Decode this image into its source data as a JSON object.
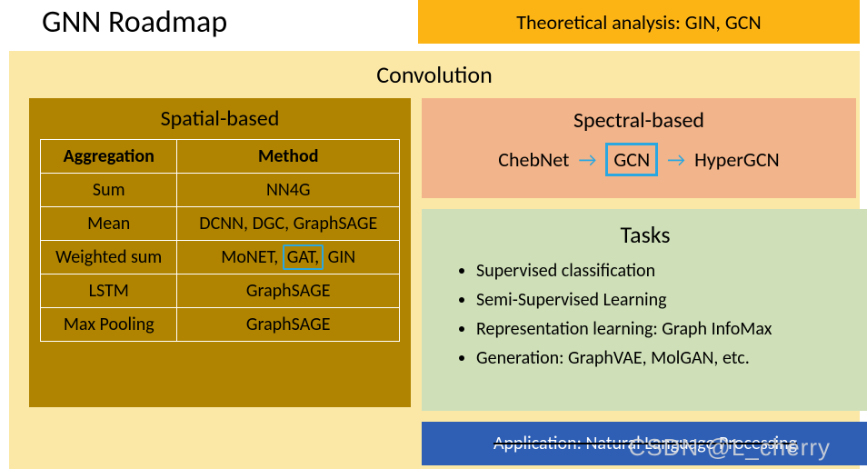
{
  "title": "GNN Roadmap",
  "colors": {
    "theory_bg": "#fcb415",
    "convolution_bg": "#fbe8a6",
    "spatial_bg": "#b08401",
    "spatial_cell_bg": "#b08401",
    "spectral_bg": "#f2b48a",
    "tasks_bg": "#cfe0b8",
    "app_bg": "#2e5fb4",
    "highlight_border": "#2aa7e0",
    "text": "#000000"
  },
  "theory": {
    "label": "Theoretical analysis: GIN, GCN"
  },
  "convolution": {
    "title": "Convolution",
    "spatial": {
      "title": "Spatial-based",
      "columns": [
        "Aggregation",
        "Method"
      ],
      "rows": [
        {
          "agg": "Sum",
          "method_pre": "NN4G",
          "highlight": "",
          "method_post": ""
        },
        {
          "agg": "Mean",
          "method_pre": "DCNN, DGC, GraphSAGE",
          "highlight": "",
          "method_post": ""
        },
        {
          "agg": "Weighted sum",
          "method_pre": "MoNET, ",
          "highlight": "GAT,",
          "method_post": " GIN"
        },
        {
          "agg": "LSTM",
          "method_pre": "GraphSAGE",
          "highlight": "",
          "method_post": ""
        },
        {
          "agg": "Max Pooling",
          "method_pre": "GraphSAGE",
          "highlight": "",
          "method_post": ""
        }
      ]
    },
    "spectral": {
      "title": "Spectral-based",
      "items": {
        "a": "ChebNet",
        "b": "GCN",
        "c": "HyperGCN"
      },
      "arrow": "→"
    }
  },
  "tasks": {
    "title": "Tasks",
    "items": [
      "Supervised classification",
      "Semi-Supervised Learning",
      "Representation learning: Graph InfoMax",
      "Generation: GraphVAE, MolGAN, etc."
    ]
  },
  "application": {
    "label": "Application: Natural Language Processing"
  },
  "watermark": "CSDN @L_cherry"
}
